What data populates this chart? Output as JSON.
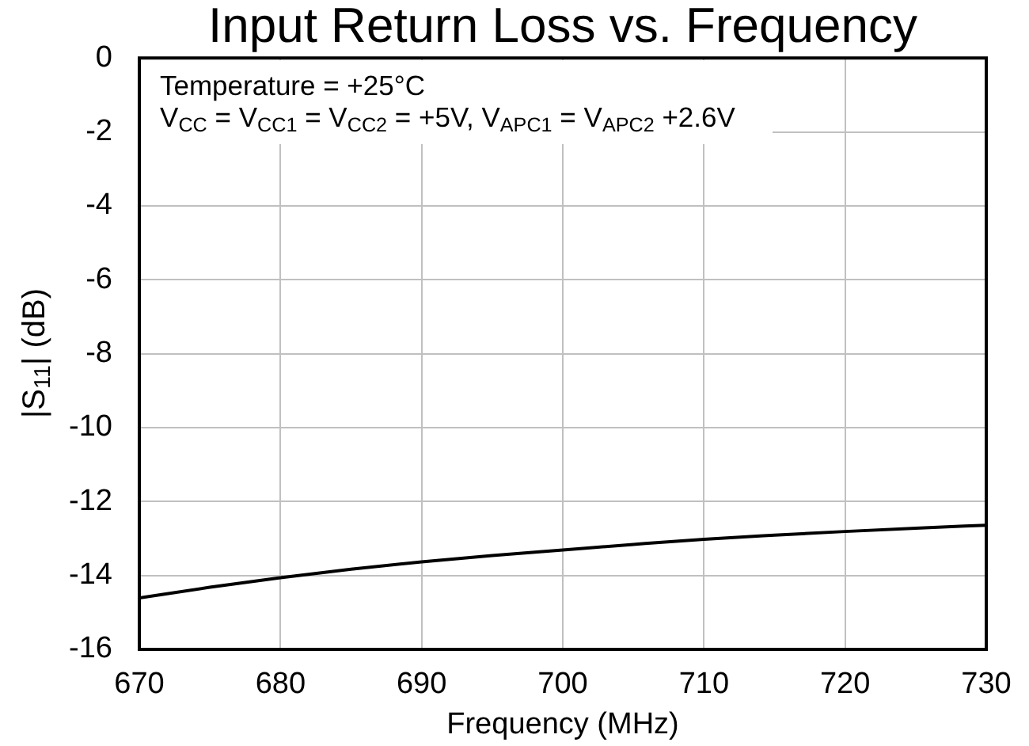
{
  "chart_data": {
    "type": "line",
    "title": "Input Return Loss vs. Frequency",
    "xlabel": "Frequency (MHz)",
    "ylabel": "|S$_{11}$| (dB)",
    "annotations": [
      "Temperature = +25°C",
      "V$_{CC}$ = V$_{CC1}$ = V$_{CC2}$ = +5V, V$_{APC1}$ = V$_{APC2}$ +2.6V"
    ],
    "x": [
      670,
      675,
      680,
      685,
      690,
      695,
      700,
      705,
      710,
      715,
      720,
      725,
      730
    ],
    "series": [
      {
        "color": "#000000",
        "values": [
          -14.61,
          -14.32,
          -14.06,
          -13.83,
          -13.63,
          -13.46,
          -13.31,
          -13.16,
          -13.02,
          -12.91,
          -12.81,
          -12.72,
          -12.64
        ]
      }
    ],
    "xlim": [
      670,
      730
    ],
    "xticks": [
      670,
      680,
      690,
      700,
      710,
      720,
      730
    ],
    "ylim": [
      -16,
      0
    ],
    "yticks": [
      -16,
      -14,
      -12,
      -10,
      -8,
      -6,
      -4,
      -2,
      0
    ],
    "grid": true,
    "marker": "none",
    "line_style": "solid"
  }
}
